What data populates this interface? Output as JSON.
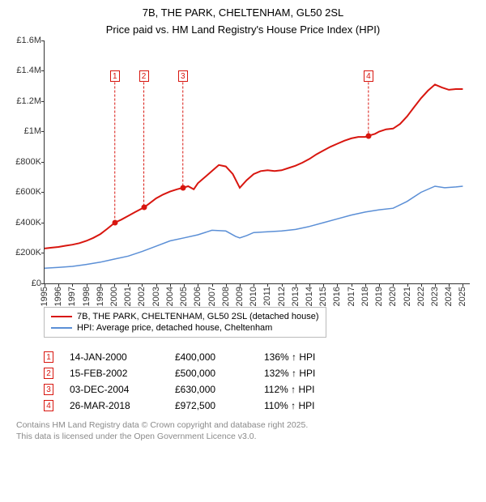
{
  "title_line1": "7B, THE PARK, CHELTENHAM, GL50 2SL",
  "title_line2": "Price paid vs. HM Land Registry's House Price Index (HPI)",
  "chart": {
    "type": "line",
    "background_color": "#ffffff",
    "axis_color": "#333333",
    "axis_fontsize": 11,
    "title_fontsize": 13,
    "ylim": [
      0,
      1600000
    ],
    "ytick_step": 200000,
    "yticks": [
      {
        "v": 0,
        "label": "£0"
      },
      {
        "v": 200000,
        "label": "£200K"
      },
      {
        "v": 400000,
        "label": "£400K"
      },
      {
        "v": 600000,
        "label": "£600K"
      },
      {
        "v": 800000,
        "label": "£800K"
      },
      {
        "v": 1000000,
        "label": "£1M"
      },
      {
        "v": 1200000,
        "label": "£1.2M"
      },
      {
        "v": 1400000,
        "label": "£1.4M"
      },
      {
        "v": 1600000,
        "label": "£1.6M"
      }
    ],
    "xlim": [
      1995,
      2025.5
    ],
    "xticks": [
      1995,
      1996,
      1997,
      1998,
      1999,
      2000,
      2001,
      2002,
      2003,
      2004,
      2005,
      2006,
      2007,
      2008,
      2009,
      2010,
      2011,
      2012,
      2013,
      2014,
      2015,
      2016,
      2017,
      2018,
      2019,
      2020,
      2021,
      2022,
      2023,
      2024,
      2025
    ],
    "series": [
      {
        "name": "7B, THE PARK, CHELTENHAM, GL50 2SL (detached house)",
        "color": "#d8160f",
        "line_width": 2,
        "points": [
          [
            1995.0,
            230000
          ],
          [
            1995.5,
            235000
          ],
          [
            1996.0,
            240000
          ],
          [
            1996.5,
            248000
          ],
          [
            1997.0,
            255000
          ],
          [
            1997.5,
            265000
          ],
          [
            1998.0,
            280000
          ],
          [
            1998.5,
            300000
          ],
          [
            1999.0,
            325000
          ],
          [
            1999.5,
            360000
          ],
          [
            2000.04,
            400000
          ],
          [
            2000.5,
            420000
          ],
          [
            2001.0,
            445000
          ],
          [
            2001.5,
            470000
          ],
          [
            2002.12,
            500000
          ],
          [
            2002.5,
            525000
          ],
          [
            2003.0,
            560000
          ],
          [
            2003.5,
            585000
          ],
          [
            2004.0,
            605000
          ],
          [
            2004.5,
            620000
          ],
          [
            2004.92,
            630000
          ],
          [
            2005.3,
            640000
          ],
          [
            2005.7,
            620000
          ],
          [
            2006.0,
            660000
          ],
          [
            2006.5,
            700000
          ],
          [
            2007.0,
            740000
          ],
          [
            2007.5,
            780000
          ],
          [
            2008.0,
            770000
          ],
          [
            2008.5,
            720000
          ],
          [
            2009.0,
            630000
          ],
          [
            2009.5,
            680000
          ],
          [
            2010.0,
            720000
          ],
          [
            2010.5,
            740000
          ],
          [
            2011.0,
            745000
          ],
          [
            2011.5,
            740000
          ],
          [
            2012.0,
            745000
          ],
          [
            2012.5,
            760000
          ],
          [
            2013.0,
            775000
          ],
          [
            2013.5,
            795000
          ],
          [
            2014.0,
            820000
          ],
          [
            2014.5,
            850000
          ],
          [
            2015.0,
            875000
          ],
          [
            2015.5,
            900000
          ],
          [
            2016.0,
            920000
          ],
          [
            2016.5,
            940000
          ],
          [
            2017.0,
            955000
          ],
          [
            2017.5,
            965000
          ],
          [
            2018.0,
            965000
          ],
          [
            2018.23,
            972500
          ],
          [
            2018.7,
            985000
          ],
          [
            2019.0,
            1000000
          ],
          [
            2019.5,
            1015000
          ],
          [
            2020.0,
            1020000
          ],
          [
            2020.5,
            1050000
          ],
          [
            2021.0,
            1100000
          ],
          [
            2021.5,
            1160000
          ],
          [
            2022.0,
            1220000
          ],
          [
            2022.5,
            1270000
          ],
          [
            2023.0,
            1310000
          ],
          [
            2023.5,
            1290000
          ],
          [
            2024.0,
            1275000
          ],
          [
            2024.5,
            1280000
          ],
          [
            2025.0,
            1280000
          ]
        ]
      },
      {
        "name": "HPI: Average price, detached house, Cheltenham",
        "color": "#5b8fd6",
        "line_width": 1.5,
        "points": [
          [
            1995.0,
            100000
          ],
          [
            1996.0,
            105000
          ],
          [
            1997.0,
            112000
          ],
          [
            1998.0,
            125000
          ],
          [
            1999.0,
            140000
          ],
          [
            2000.0,
            160000
          ],
          [
            2001.0,
            180000
          ],
          [
            2002.0,
            210000
          ],
          [
            2003.0,
            245000
          ],
          [
            2004.0,
            280000
          ],
          [
            2005.0,
            300000
          ],
          [
            2006.0,
            320000
          ],
          [
            2007.0,
            350000
          ],
          [
            2008.0,
            345000
          ],
          [
            2008.7,
            310000
          ],
          [
            2009.0,
            300000
          ],
          [
            2009.5,
            315000
          ],
          [
            2010.0,
            335000
          ],
          [
            2011.0,
            340000
          ],
          [
            2012.0,
            345000
          ],
          [
            2013.0,
            355000
          ],
          [
            2014.0,
            375000
          ],
          [
            2015.0,
            400000
          ],
          [
            2016.0,
            425000
          ],
          [
            2017.0,
            450000
          ],
          [
            2018.0,
            470000
          ],
          [
            2019.0,
            485000
          ],
          [
            2020.0,
            495000
          ],
          [
            2021.0,
            540000
          ],
          [
            2022.0,
            600000
          ],
          [
            2023.0,
            640000
          ],
          [
            2023.7,
            630000
          ],
          [
            2024.5,
            635000
          ],
          [
            2025.0,
            640000
          ]
        ]
      }
    ],
    "sale_markers": [
      {
        "n": "1",
        "x": 2000.04,
        "y": 400000,
        "box_top_y": 1400000
      },
      {
        "n": "2",
        "x": 2002.12,
        "y": 500000,
        "box_top_y": 1400000
      },
      {
        "n": "3",
        "x": 2004.92,
        "y": 630000,
        "box_top_y": 1400000
      },
      {
        "n": "4",
        "x": 2018.23,
        "y": 972500,
        "box_top_y": 1400000
      }
    ],
    "marker_box_color": "#d8160f",
    "marker_point_color": "#d8160f"
  },
  "legend": {
    "border_color": "#bbbbbb",
    "fontsize": 11,
    "items": [
      {
        "label": "7B, THE PARK, CHELTENHAM, GL50 2SL (detached house)",
        "color": "#d8160f"
      },
      {
        "label": "HPI: Average price, detached house, Cheltenham",
        "color": "#5b8fd6"
      }
    ]
  },
  "sales_table": {
    "fontsize": 12,
    "box_color": "#d8160f",
    "rows": [
      {
        "n": "1",
        "date": "14-JAN-2000",
        "price": "£400,000",
        "pct": "136% ↑ HPI"
      },
      {
        "n": "2",
        "date": "15-FEB-2002",
        "price": "£500,000",
        "pct": "132% ↑ HPI"
      },
      {
        "n": "3",
        "date": "03-DEC-2004",
        "price": "£630,000",
        "pct": "112% ↑ HPI"
      },
      {
        "n": "4",
        "date": "26-MAR-2018",
        "price": "£972,500",
        "pct": "110% ↑ HPI"
      }
    ]
  },
  "footnote_line1": "Contains HM Land Registry data © Crown copyright and database right 2025.",
  "footnote_line2": "This data is licensed under the Open Government Licence v3.0."
}
